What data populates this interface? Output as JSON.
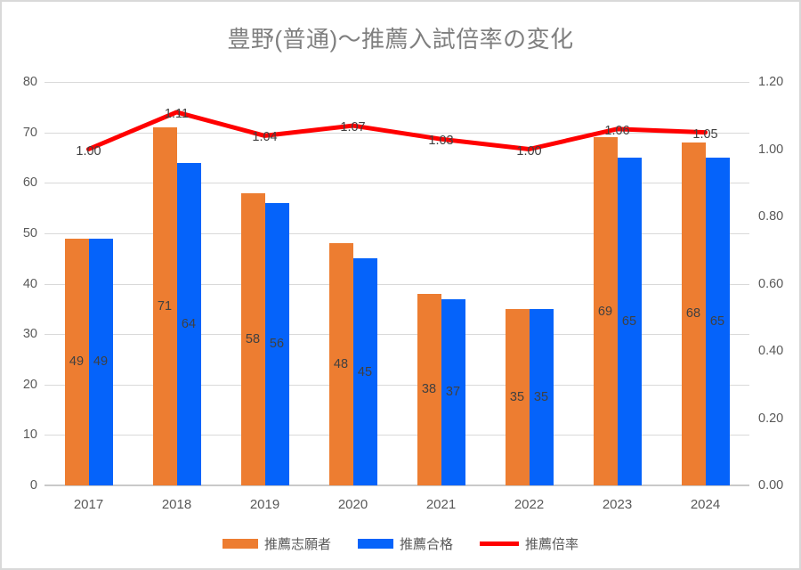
{
  "title": "豊野(普通)～推薦入試倍率の変化",
  "chart_data": {
    "type": "bar",
    "subtype": "combo-bar-line",
    "categories": [
      "2017",
      "2018",
      "2019",
      "2020",
      "2021",
      "2022",
      "2023",
      "2024"
    ],
    "series": [
      {
        "name": "推薦志願者",
        "type": "bar",
        "axis": "left",
        "color": "#ED7D31",
        "values": [
          49,
          71,
          58,
          48,
          38,
          35,
          69,
          68
        ]
      },
      {
        "name": "推薦合格",
        "type": "bar",
        "axis": "left",
        "color": "#0563FA",
        "values": [
          49,
          64,
          56,
          45,
          37,
          35,
          65,
          65
        ]
      },
      {
        "name": "推薦倍率",
        "type": "line",
        "axis": "right",
        "color": "#FF0000",
        "values": [
          1.0,
          1.11,
          1.04,
          1.07,
          1.03,
          1.0,
          1.06,
          1.05
        ],
        "labels": [
          "1.00",
          "1.11",
          "1.04",
          "1.07",
          "1.03",
          "1.00",
          "1.06",
          "1.05"
        ]
      }
    ],
    "left_axis": {
      "min": 0,
      "max": 80,
      "step": 10,
      "ticks": [
        "0",
        "10",
        "20",
        "30",
        "40",
        "50",
        "60",
        "70",
        "80"
      ]
    },
    "right_axis": {
      "min": 0,
      "max": 1.2,
      "step": 0.2,
      "ticks": [
        "0.00",
        "0.20",
        "0.40",
        "0.60",
        "0.80",
        "1.00",
        "1.20"
      ]
    },
    "grid": true,
    "legend_position": "bottom",
    "data_labels": true
  },
  "colors": {
    "applicants_bar": "#ED7D31",
    "accepted_bar": "#0563FA",
    "ratio_line": "#FF0000",
    "gridline": "#D9D9D9",
    "axis_text": "#595959",
    "label_text": "#404040",
    "title_text": "#7F7F7F",
    "border": "#D9D9D9"
  }
}
